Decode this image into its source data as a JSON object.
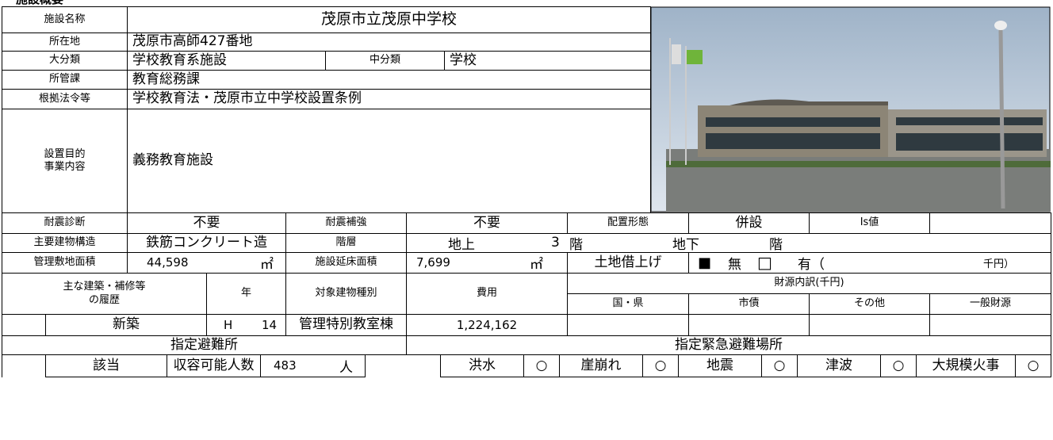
{
  "header": {
    "title": "施設概要"
  },
  "basic": {
    "name": {
      "label": "施設名称",
      "value": "茂原市立茂原中学校"
    },
    "address": {
      "label": "所在地",
      "value": "茂原市高師427番地"
    },
    "category": {
      "label": "大分類",
      "value": "学校教育系施設",
      "sub_label": "中分類",
      "sub_value": "学校"
    },
    "department": {
      "label": "所管課",
      "value": "教育総務課"
    },
    "law": {
      "label": "根拠法令等",
      "value": "学校教育法・茂原市立中学校設置条例"
    },
    "purpose": {
      "label": [
        "設置目的",
        "事業内容"
      ],
      "value": "義務教育施設"
    }
  },
  "seismic": {
    "diagnosis_label": "耐震診断",
    "diagnosis": "不要",
    "reinforcement_label": "耐震補強",
    "reinforcement": "不要",
    "layout_label": "配置形態",
    "layout": "併設",
    "is_label": "Is値"
  },
  "structure": {
    "label": "主要建物構造",
    "value": "鉄筋コンクリート造",
    "floors_label": "階層",
    "above_label": "地上",
    "above": "3",
    "above_unit": "階",
    "below_label": "地下",
    "below_unit": "階"
  },
  "area": {
    "site_label": "管理敷地面積",
    "site": "44,598",
    "site_unit": "㎡",
    "floor_label": "施設延床面積",
    "floor": "7,699",
    "floor_unit": "㎡",
    "lease_label": "土地借上げ",
    "no_mark": "■",
    "no": "無",
    "yes_mark": "□",
    "yes": "有（",
    "amount_unit": "千円）"
  },
  "history": {
    "headers": {
      "item": [
        "主な建築・補修等",
        "の履歴"
      ],
      "year": "年",
      "building": "対象建物種別",
      "cost": "費用",
      "funding": "財源内訳(千円)",
      "sources": [
        "国・県",
        "市債",
        "その他",
        "一般財源"
      ]
    },
    "rows": [
      {
        "item": "新築",
        "era": "H",
        "year": "14",
        "building": "管理特別教室棟",
        "cost": "1,224,162"
      }
    ]
  },
  "evacuation": {
    "shelter_label": "指定避難所",
    "emergency_label": "指定緊急避難場所",
    "shelter": "該当",
    "capacity_label": "収容可能人数",
    "capacity": "483",
    "capacity_unit": "人",
    "hazards": [
      {
        "name": "洪水",
        "mark": "○"
      },
      {
        "name": "崖崩れ",
        "mark": "○"
      },
      {
        "name": "地震",
        "mark": "○"
      },
      {
        "name": "津波",
        "mark": "○"
      },
      {
        "name": "大規模火事",
        "mark": "○"
      }
    ]
  }
}
